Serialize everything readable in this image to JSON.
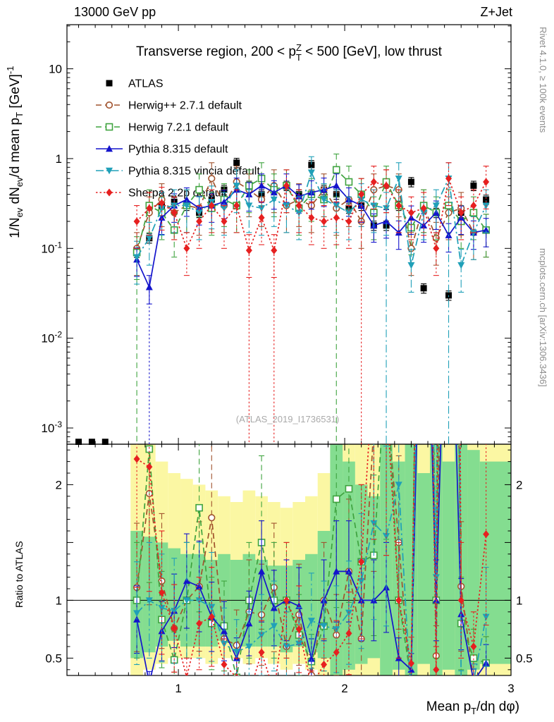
{
  "header": {
    "left": "13000 GeV pp",
    "right": "Z+Jet"
  },
  "title": {
    "pre": "Transverse region, 200 < p",
    "sup": "Z",
    "sub": "T",
    "post": " < 500 [GeV], low thrust"
  },
  "ylabel": {
    "p1": "1/N",
    "p2": "ev",
    "p3": " dN",
    "p4": "ev",
    "p5": "/d mean p",
    "p6": "T",
    "p7": " [GeV]",
    "p8": "-1"
  },
  "ratio_label": "Ratio to ATLAS",
  "xlabel": {
    "p1": "Mean p",
    "p2": "T",
    "p3": "/dη dφ)"
  },
  "side": {
    "top": "Rivet 4.1.0, ≥ 100k events",
    "bottom": "mcplots.cern.ch [arXiv:1306.3436]"
  },
  "watermark": "(ATLAS_2019_I1736531)",
  "chart_data": {
    "type": "line",
    "x_range": [
      0.33,
      3.0
    ],
    "y_range_main": [
      0.00066,
      31
    ],
    "y_range_ratio": [
      0.35,
      2.35
    ],
    "axes": {
      "x_major": [
        1,
        2,
        3
      ],
      "main_y_decades": [
        -3,
        -2,
        -1,
        0,
        1
      ],
      "ratio_y_labels": [
        0.5,
        1,
        2
      ]
    },
    "x": [
      0.75,
      0.825,
      0.9,
      0.975,
      1.05,
      1.125,
      1.2,
      1.275,
      1.35,
      1.425,
      1.5,
      1.575,
      1.65,
      1.725,
      1.8,
      1.875,
      1.95,
      2.025,
      2.1,
      2.175,
      2.25,
      2.325,
      2.4,
      2.475,
      2.55,
      2.625,
      2.7,
      2.775,
      2.85
    ],
    "atlas_low": {
      "x": [
        0.4,
        0.48,
        0.56
      ],
      "y": [
        0.0007,
        0.0007,
        0.0007
      ]
    },
    "series": [
      {
        "name": "ATLAS",
        "color": "#000000",
        "marker": "square",
        "line": "none",
        "rel_err": 0.12,
        "values": [
          0.09,
          0.13,
          0.3,
          0.33,
          0.3,
          0.25,
          0.35,
          0.45,
          0.9,
          0.5,
          0.4,
          0.45,
          0.5,
          0.4,
          0.85,
          0.45,
          0.4,
          0.28,
          0.3,
          0.18,
          0.18,
          0.3,
          0.55,
          0.036,
          0.25,
          0.03,
          0.25,
          0.5,
          0.35
        ]
      },
      {
        "name": "Herwig++ 2.7.1 default",
        "color": "#a0522d",
        "marker": "circle-open",
        "line": "dashed",
        "rel_err": 0.5,
        "values": [
          0.1,
          0.25,
          0.35,
          0.25,
          0.3,
          0.28,
          0.6,
          0.3,
          0.55,
          0.45,
          0.35,
          0.5,
          0.3,
          0.35,
          0.3,
          0.45,
          0.28,
          0.35,
          0.2,
          0.45,
          0.5,
          0.45,
          0.1,
          0.3,
          0.13,
          0.25,
          0.28,
          0.15,
          0.16
        ]
      },
      {
        "name": "Herwig 7.2.1 default",
        "color": "#3fa33f",
        "marker": "square-open",
        "line": "dashed",
        "rel_err": 0.5,
        "droplines": [
          0.75,
          1.95
        ],
        "values": [
          0.09,
          0.3,
          0.25,
          0.16,
          0.3,
          0.45,
          0.28,
          0.35,
          0.3,
          0.5,
          0.6,
          0.45,
          0.5,
          0.28,
          0.4,
          0.35,
          0.75,
          0.55,
          0.4,
          0.25,
          0.55,
          0.3,
          0.17,
          0.3,
          0.25,
          0.3,
          0.2,
          0.25,
          0.16
        ]
      },
      {
        "name": "Pythia 8.315 default",
        "color": "#1414cc",
        "marker": "triangle-up",
        "line": "solid",
        "rel_err": 0.35,
        "droplines": [
          0.825
        ],
        "values": [
          0.075,
          0.037,
          0.22,
          0.3,
          0.35,
          0.28,
          0.3,
          0.33,
          0.45,
          0.4,
          0.5,
          0.42,
          0.5,
          0.38,
          0.42,
          0.45,
          0.5,
          0.35,
          0.3,
          0.18,
          0.2,
          0.15,
          0.22,
          0.18,
          0.25,
          0.14,
          0.22,
          0.15,
          0.16
        ]
      },
      {
        "name": "Pythia 8.315 vincia default",
        "color": "#20a0b8",
        "marker": "triangle-down",
        "line": "dashdot",
        "rel_err": 0.5,
        "droplines": [
          2.25,
          2.625
        ],
        "values": [
          0.08,
          0.13,
          0.28,
          0.3,
          0.3,
          0.25,
          0.33,
          0.28,
          0.5,
          0.3,
          0.28,
          0.35,
          0.3,
          0.25,
          0.7,
          0.35,
          0.3,
          0.25,
          0.35,
          0.3,
          0.28,
          0.6,
          0.065,
          0.25,
          0.3,
          0.6,
          0.065,
          0.15,
          0.3
        ]
      },
      {
        "name": "Sherpa 2.2p default",
        "color": "#e62020",
        "marker": "diamond",
        "line": "dotted",
        "rel_err": 0.5,
        "droplines": [
          1.425,
          1.575,
          2.1
        ],
        "values": [
          0.2,
          0.28,
          0.32,
          0.25,
          0.1,
          0.2,
          0.3,
          0.2,
          0.3,
          0.095,
          0.22,
          0.095,
          0.5,
          0.3,
          0.22,
          0.2,
          0.22,
          0.2,
          0.4,
          0.55,
          0.5,
          0.3,
          0.25,
          0.28,
          0.1,
          0.6,
          0.25,
          0.3,
          0.55
        ]
      }
    ],
    "ratio_bands": {
      "colors": {
        "green": "#84dd90",
        "yellow": "#fbf7a3"
      },
      "yellow_lo": [
        0.35,
        0.4,
        0.45,
        0.5,
        0.5,
        0.5,
        0.45,
        0.5,
        0.5,
        0.45,
        0.5,
        0.45,
        0.4,
        0.45,
        0.4,
        0.35,
        0.35,
        0.35,
        0.35,
        0.35,
        0.35,
        0.35,
        0.35,
        0.35,
        0.35,
        0.35,
        0.35,
        0.35,
        0.35
      ],
      "yellow_hi": [
        2.35,
        2.35,
        2.2,
        2.1,
        2.05,
        2.0,
        1.95,
        1.9,
        1.85,
        1.95,
        1.9,
        1.85,
        1.8,
        1.85,
        1.9,
        2.1,
        2.35,
        2.35,
        2.35,
        2.35,
        2.35,
        2.35,
        2.35,
        2.35,
        2.35,
        2.35,
        2.35,
        2.35,
        2.35
      ],
      "green_lo": [
        0.5,
        0.55,
        0.6,
        0.65,
        0.6,
        0.6,
        0.6,
        0.65,
        0.6,
        0.6,
        0.6,
        0.6,
        0.55,
        0.6,
        0.55,
        0.5,
        0.35,
        0.4,
        0.45,
        0.5,
        0.35,
        0.4,
        0.35,
        0.45,
        0.35,
        0.4,
        0.35,
        0.4,
        0.45
      ],
      "green_hi": [
        1.6,
        1.55,
        1.5,
        1.45,
        1.4,
        1.4,
        1.35,
        1.4,
        1.35,
        1.4,
        1.35,
        1.3,
        1.3,
        1.35,
        1.4,
        1.6,
        2.35,
        2.2,
        2.0,
        1.9,
        2.35,
        2.2,
        2.35,
        2.1,
        2.35,
        2.2,
        2.35,
        2.3,
        2.2
      ]
    }
  }
}
